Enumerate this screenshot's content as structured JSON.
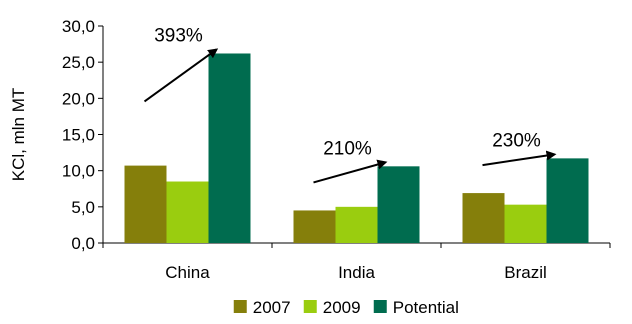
{
  "chart_data": {
    "type": "bar",
    "title": "",
    "xlabel": "",
    "ylabel": "KCl, mln MT",
    "ylim": [
      0,
      30
    ],
    "yticks": [
      "0,0",
      "5,0",
      "10,0",
      "15,0",
      "20,0",
      "25,0",
      "30,0"
    ],
    "categories": [
      "China",
      "India",
      "Brazil"
    ],
    "series": [
      {
        "name": "2007",
        "color": "#857f0b",
        "values": [
          10.7,
          4.5,
          6.9
        ]
      },
      {
        "name": "2009",
        "color": "#9acd0f",
        "values": [
          8.5,
          5.0,
          5.3
        ]
      },
      {
        "name": "Potential",
        "color": "#006c4f",
        "values": [
          26.2,
          10.6,
          11.7
        ]
      }
    ],
    "annotations": [
      {
        "category": "China",
        "text": "393%"
      },
      {
        "category": "India",
        "text": "210%"
      },
      {
        "category": "Brazil",
        "text": "230%"
      }
    ],
    "legend": {
      "position": "bottom"
    },
    "grid": false
  }
}
